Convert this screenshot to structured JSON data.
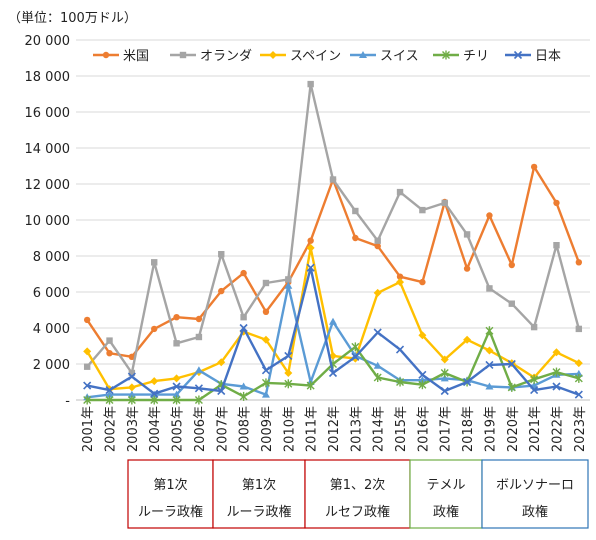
{
  "chart_data": {
    "type": "line",
    "unit_label": "（単位：100万ドル）",
    "ylim": [
      0,
      20000
    ],
    "yticks": [
      "20 000",
      "18 000",
      "16 000",
      "14 000",
      "12 000",
      "10 000",
      "8 000",
      "6 000",
      "4 000",
      "2 000",
      "-"
    ],
    "categories": [
      "2001年",
      "2002年",
      "2003年",
      "2004年",
      "2005年",
      "2006年",
      "2007年",
      "2008年",
      "2009年",
      "2010年",
      "2011年",
      "2012年",
      "2013年",
      "2014年",
      "2015年",
      "2016年",
      "2017年",
      "2018年",
      "2019年",
      "2020年",
      "2021年",
      "2022年",
      "2023年"
    ],
    "legend_position": "top-right",
    "grid": true,
    "series": [
      {
        "name": "米国",
        "color": "#ED7D31",
        "marker": "circle",
        "values": [
          4450,
          2600,
          2400,
          3950,
          4600,
          4500,
          6050,
          7050,
          4900,
          6550,
          8850,
          12250,
          9000,
          8550,
          6850,
          6550,
          11000,
          7300,
          10250,
          7500,
          12950,
          10950,
          7650
        ]
      },
      {
        "name": "オランダ",
        "color": "#A5A5A5",
        "marker": "square",
        "values": [
          1850,
          3300,
          1500,
          7650,
          3150,
          3500,
          8100,
          4600,
          6500,
          6700,
          17550,
          12250,
          10500,
          8850,
          11550,
          10550,
          10950,
          9200,
          6200,
          5350,
          4050,
          8600,
          3950
        ]
      },
      {
        "name": "スペイン",
        "color": "#FFC000",
        "marker": "diamond",
        "values": [
          2700,
          600,
          700,
          1050,
          1200,
          1550,
          2100,
          3800,
          3350,
          1500,
          8450,
          2450,
          2300,
          5950,
          6550,
          3600,
          2250,
          3350,
          2750,
          2050,
          1250,
          2650,
          2050
        ]
      },
      {
        "name": "スイス",
        "color": "#5B9BD5",
        "marker": "triangle",
        "values": [
          150,
          300,
          300,
          300,
          300,
          1650,
          900,
          750,
          300,
          6350,
          1000,
          4350,
          2450,
          1900,
          1100,
          1100,
          1200,
          1100,
          750,
          700,
          800,
          1400,
          1450
        ]
      },
      {
        "name": "チリ",
        "color": "#70AD47",
        "marker": "star",
        "values": [
          0,
          0,
          0,
          0,
          0,
          0,
          850,
          200,
          950,
          900,
          800,
          2000,
          2950,
          1250,
          1000,
          850,
          1500,
          1000,
          3850,
          700,
          1150,
          1550,
          1200
        ]
      },
      {
        "name": "日本",
        "color": "#4472C4",
        "marker": "x",
        "values": [
          800,
          550,
          1300,
          350,
          750,
          650,
          500,
          4000,
          1650,
          2450,
          7350,
          1500,
          2400,
          3750,
          2800,
          1400,
          500,
          1000,
          1950,
          2000,
          550,
          750,
          300
        ]
      }
    ],
    "eras": [
      {
        "line1": "第1次",
        "line2": "ルーラ政権",
        "color": "#C00000"
      },
      {
        "line1": "第1次",
        "line2": "ルーラ政権",
        "color": "#C00000"
      },
      {
        "line1": "第1、2次",
        "line2": "ルセフ政権",
        "color": "#C00000"
      },
      {
        "line1": "テメル",
        "line2": "政権",
        "color": "#70AD47"
      },
      {
        "line1": "ボルソナーロ",
        "line2": "政権",
        "color": "#2E75B6"
      }
    ]
  }
}
